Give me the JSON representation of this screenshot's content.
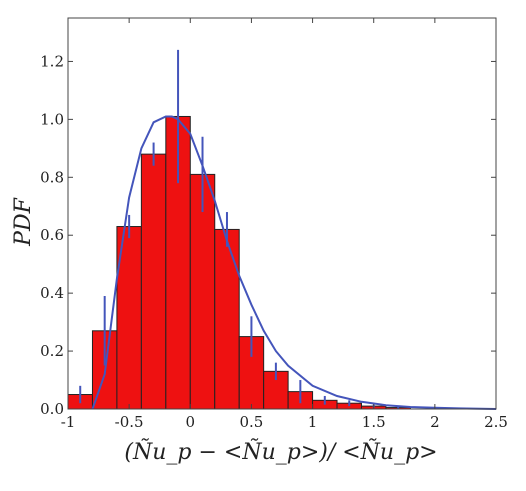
{
  "chart_data": {
    "type": "bar",
    "ylabel": "PDF",
    "xlabel": "(Ñu_p − <Ñu_p>)/ <Ñu_p>",
    "xlim": [
      -1,
      2.5
    ],
    "ylim": [
      0,
      1.35
    ],
    "xticks": [
      -1,
      -0.5,
      0,
      0.5,
      1,
      1.5,
      2,
      2.5
    ],
    "xtick_labels": [
      "-1",
      "-0.5",
      "0",
      "0.5",
      "1",
      "1.5",
      "2",
      "2.5"
    ],
    "yticks": [
      0,
      0.2,
      0.4,
      0.6,
      0.8,
      1.0,
      1.2
    ],
    "ytick_labels": [
      "0.0",
      "0.2",
      "0.4",
      "0.6",
      "0.8",
      "1.0",
      "1.2"
    ],
    "bin_width": 0.2,
    "bins": [
      {
        "x": -0.9,
        "value": 0.05,
        "err": 0.03
      },
      {
        "x": -0.7,
        "value": 0.27,
        "err": 0.12
      },
      {
        "x": -0.5,
        "value": 0.63,
        "err": 0.04
      },
      {
        "x": -0.3,
        "value": 0.88,
        "err": 0.04
      },
      {
        "x": -0.1,
        "value": 1.01,
        "err": 0.23
      },
      {
        "x": 0.1,
        "value": 0.81,
        "err": 0.13
      },
      {
        "x": 0.3,
        "value": 0.62,
        "err": 0.06
      },
      {
        "x": 0.5,
        "value": 0.25,
        "err": 0.07
      },
      {
        "x": 0.7,
        "value": 0.13,
        "err": 0.03
      },
      {
        "x": 0.9,
        "value": 0.06,
        "err": 0.04
      },
      {
        "x": 1.1,
        "value": 0.03,
        "err": 0.015
      },
      {
        "x": 1.3,
        "value": 0.02,
        "err": 0.01
      },
      {
        "x": 1.5,
        "value": 0.01,
        "err": 0.005
      },
      {
        "x": 1.7,
        "value": 0.005,
        "err": 0.003
      }
    ],
    "fit_curve": {
      "x": [
        -0.8,
        -0.7,
        -0.6,
        -0.5,
        -0.4,
        -0.3,
        -0.2,
        -0.15,
        -0.1,
        0,
        0.1,
        0.2,
        0.3,
        0.4,
        0.5,
        0.6,
        0.7,
        0.8,
        1.0,
        1.2,
        1.4,
        1.6,
        1.8,
        2.0,
        2.2,
        2.5
      ],
      "y": [
        0.0,
        0.12,
        0.45,
        0.73,
        0.9,
        0.99,
        1.01,
        1.01,
        1.0,
        0.95,
        0.84,
        0.72,
        0.58,
        0.46,
        0.36,
        0.27,
        0.2,
        0.15,
        0.08,
        0.045,
        0.025,
        0.013,
        0.007,
        0.004,
        0.002,
        0.0
      ]
    }
  },
  "colors": {
    "bar_fill": "#ee1111",
    "fit_line": "#4455bb",
    "error_bar": "#4455bb"
  }
}
